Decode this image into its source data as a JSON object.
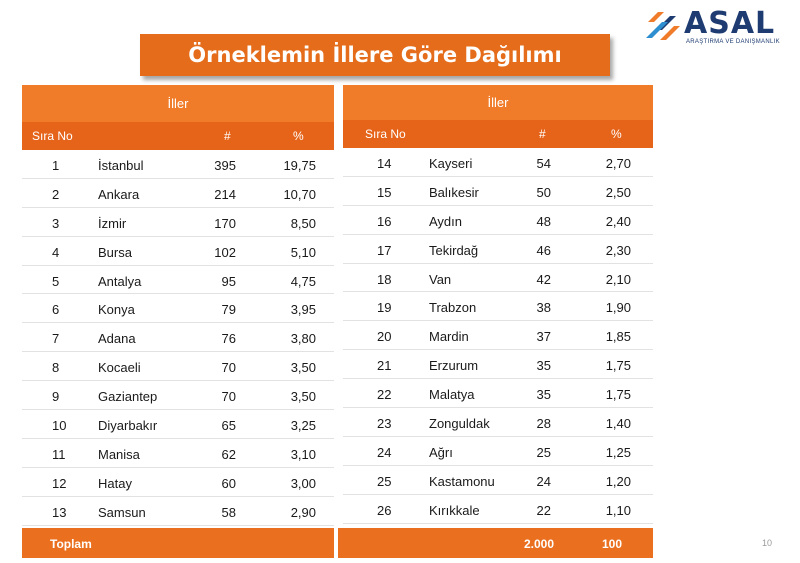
{
  "logo": {
    "name": "ASAL",
    "tagline": "ARAŞTIRMA VE DANIŞMANLIK"
  },
  "title": "Örneklemin İllere Göre Dağılımı",
  "headers": {
    "group": "İller",
    "rank": "Sıra No",
    "count": "#",
    "percent": "%"
  },
  "left_rows": [
    {
      "no": "1",
      "city": "İstanbul",
      "count": "395",
      "pct": "19,75"
    },
    {
      "no": "2",
      "city": "Ankara",
      "count": "214",
      "pct": "10,70"
    },
    {
      "no": "3",
      "city": "İzmir",
      "count": "170",
      "pct": "8,50"
    },
    {
      "no": "4",
      "city": "Bursa",
      "count": "102",
      "pct": "5,10"
    },
    {
      "no": "5",
      "city": "Antalya",
      "count": "95",
      "pct": "4,75"
    },
    {
      "no": "6",
      "city": "Konya",
      "count": "79",
      "pct": "3,95"
    },
    {
      "no": "7",
      "city": "Adana",
      "count": "76",
      "pct": "3,80"
    },
    {
      "no": "8",
      "city": "Kocaeli",
      "count": "70",
      "pct": "3,50"
    },
    {
      "no": "9",
      "city": "Gaziantep",
      "count": "70",
      "pct": "3,50"
    },
    {
      "no": "10",
      "city": "Diyarbakır",
      "count": "65",
      "pct": "3,25"
    },
    {
      "no": "11",
      "city": "Manisa",
      "count": "62",
      "pct": "3,10"
    },
    {
      "no": "12",
      "city": "Hatay",
      "count": "60",
      "pct": "3,00"
    },
    {
      "no": "13",
      "city": "Samsun",
      "count": "58",
      "pct": "2,90"
    }
  ],
  "right_rows": [
    {
      "no": "14",
      "city": "Kayseri",
      "count": "54",
      "pct": "2,70"
    },
    {
      "no": "15",
      "city": "Balıkesir",
      "count": "50",
      "pct": "2,50"
    },
    {
      "no": "16",
      "city": "Aydın",
      "count": "48",
      "pct": "2,40"
    },
    {
      "no": "17",
      "city": "Tekirdağ",
      "count": "46",
      "pct": "2,30"
    },
    {
      "no": "18",
      "city": "Van",
      "count": "42",
      "pct": "2,10"
    },
    {
      "no": "19",
      "city": "Trabzon",
      "count": "38",
      "pct": "1,90"
    },
    {
      "no": "20",
      "city": "Mardin",
      "count": "37",
      "pct": "1,85"
    },
    {
      "no": "21",
      "city": "Erzurum",
      "count": "35",
      "pct": "1,75"
    },
    {
      "no": "22",
      "city": "Malatya",
      "count": "35",
      "pct": "1,75"
    },
    {
      "no": "23",
      "city": "Zonguldak",
      "count": "28",
      "pct": "1,40"
    },
    {
      "no": "24",
      "city": "Ağrı",
      "count": "25",
      "pct": "1,25"
    },
    {
      "no": "25",
      "city": "Kastamonu",
      "count": "24",
      "pct": "1,20"
    },
    {
      "no": "26",
      "city": "Kırıkkale",
      "count": "22",
      "pct": "1,10"
    }
  ],
  "footer": {
    "label": "Toplam",
    "total_count": "2.000",
    "total_pct": "100"
  },
  "page_number": "10",
  "colors": {
    "orange": "#e46c1a",
    "orange_light": "#f07b28",
    "navy": "#1e3c72"
  }
}
